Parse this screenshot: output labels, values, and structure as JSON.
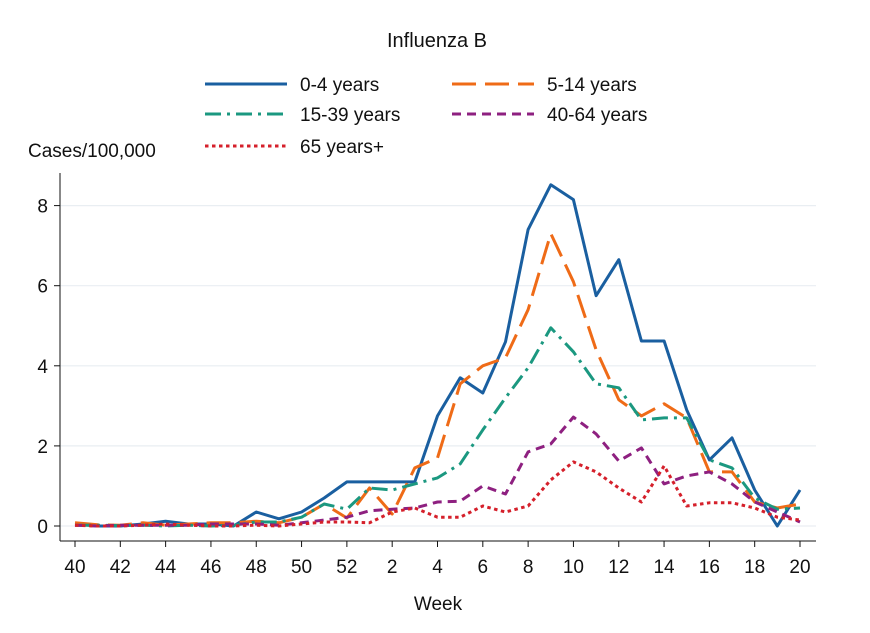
{
  "chart_data": {
    "type": "line",
    "title": "Influenza B",
    "ylabel": "Cases/100,000",
    "xlabel": "Week",
    "ylim": [
      0,
      8.8
    ],
    "yticks": [
      0,
      2,
      4,
      6,
      8
    ],
    "grid": true,
    "legend_position": "top",
    "x": [
      "40",
      "41",
      "42",
      "43",
      "44",
      "45",
      "46",
      "47",
      "48",
      "49",
      "50",
      "51",
      "52",
      "1",
      "2",
      "3",
      "4",
      "5",
      "6",
      "7",
      "8",
      "9",
      "10",
      "11",
      "12",
      "13",
      "14",
      "15",
      "16",
      "17",
      "18",
      "19",
      "20"
    ],
    "xtick_labels": [
      "40",
      "42",
      "44",
      "46",
      "48",
      "50",
      "52",
      "2",
      "4",
      "6",
      "8",
      "10",
      "12",
      "14",
      "16",
      "18",
      "20"
    ],
    "series": [
      {
        "name": "0-4 years",
        "color": "#1a5fa0",
        "style": "solid",
        "values": [
          0.05,
          0.0,
          0.0,
          0.05,
          0.12,
          0.05,
          0.05,
          0.0,
          0.35,
          0.18,
          0.35,
          0.7,
          1.1,
          1.1,
          1.1,
          1.1,
          2.75,
          3.7,
          3.32,
          4.6,
          7.4,
          8.52,
          8.15,
          5.75,
          6.65,
          4.62,
          4.62,
          2.9,
          1.65,
          2.2,
          0.9,
          0.0,
          0.9
        ]
      },
      {
        "name": "5-14 years",
        "color": "#ef6b17",
        "style": "dash",
        "values": [
          0.08,
          0.03,
          0.02,
          0.08,
          0.02,
          0.05,
          0.08,
          0.08,
          0.12,
          0.08,
          0.22,
          0.55,
          0.2,
          0.95,
          0.3,
          1.45,
          1.7,
          3.55,
          4.0,
          4.2,
          5.4,
          7.3,
          6.1,
          4.4,
          3.15,
          2.75,
          3.05,
          2.7,
          1.35,
          1.35,
          0.6,
          0.45,
          0.55
        ]
      },
      {
        "name": "15-39 years",
        "color": "#1b9880",
        "style": "dashdot",
        "values": [
          0.02,
          0.02,
          0.01,
          0.02,
          0.0,
          0.02,
          0.0,
          0.02,
          0.1,
          0.1,
          0.22,
          0.55,
          0.42,
          0.95,
          0.9,
          1.05,
          1.2,
          1.55,
          2.4,
          3.2,
          3.95,
          4.95,
          4.35,
          3.55,
          3.45,
          2.65,
          2.7,
          2.7,
          1.65,
          1.45,
          0.7,
          0.42,
          0.45
        ]
      },
      {
        "name": "40-64 years",
        "color": "#8e2080",
        "style": "shortdash",
        "values": [
          0.02,
          0.0,
          0.02,
          0.02,
          0.02,
          0.02,
          0.05,
          0.05,
          0.05,
          0.02,
          0.08,
          0.15,
          0.22,
          0.38,
          0.42,
          0.45,
          0.6,
          0.62,
          1.0,
          0.8,
          1.85,
          2.05,
          2.72,
          2.3,
          1.62,
          1.95,
          1.05,
          1.25,
          1.35,
          1.05,
          0.6,
          0.35,
          0.1
        ]
      },
      {
        "name": "65 years+",
        "color": "#d5202b",
        "style": "dot",
        "values": [
          0.02,
          0.0,
          0.0,
          0.02,
          0.05,
          0.02,
          0.0,
          0.0,
          0.02,
          0.0,
          0.05,
          0.1,
          0.1,
          0.08,
          0.35,
          0.45,
          0.22,
          0.22,
          0.5,
          0.35,
          0.5,
          1.15,
          1.6,
          1.35,
          0.95,
          0.6,
          1.5,
          0.5,
          0.58,
          0.58,
          0.45,
          0.22,
          0.15
        ]
      }
    ]
  }
}
